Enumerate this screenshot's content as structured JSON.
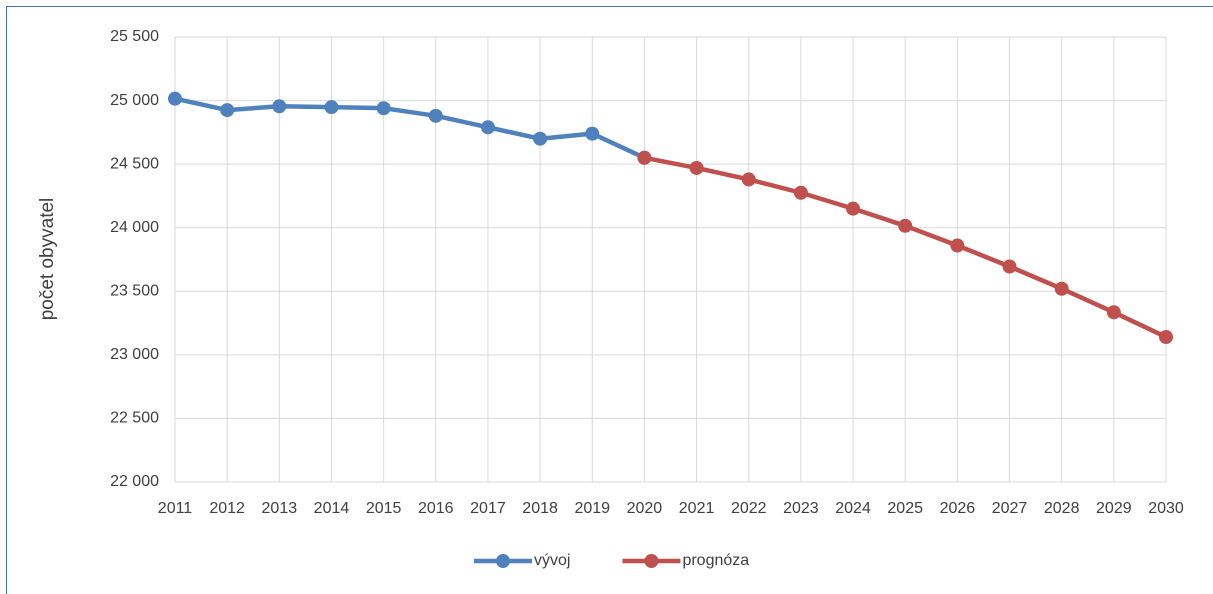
{
  "chart_data": {
    "type": "line",
    "y_label": "počet obyvatel",
    "categories": [
      "2011",
      "2012",
      "2013",
      "2014",
      "2015",
      "2016",
      "2017",
      "2018",
      "2019",
      "2020",
      "2021",
      "2022",
      "2023",
      "2024",
      "2025",
      "2026",
      "2027",
      "2028",
      "2029",
      "2030"
    ],
    "series": [
      {
        "name": "vývoj",
        "color": "#4f81bd",
        "values": [
          25015,
          24925,
          24955,
          24948,
          24940,
          24880,
          24790,
          24700,
          24740,
          24550,
          null,
          null,
          null,
          null,
          null,
          null,
          null,
          null,
          null,
          null
        ]
      },
      {
        "name": "prognóza",
        "color": "#c0504d",
        "values": [
          null,
          null,
          null,
          null,
          null,
          null,
          null,
          null,
          null,
          24550,
          24470,
          24380,
          24275,
          24150,
          24015,
          23860,
          23695,
          23520,
          23335,
          23140
        ]
      }
    ],
    "ylim": [
      22000,
      25500
    ],
    "yticks": [
      {
        "value": 22000,
        "label": "22 000"
      },
      {
        "value": 22500,
        "label": "22 500"
      },
      {
        "value": 23000,
        "label": "23 000"
      },
      {
        "value": 23500,
        "label": "23 500"
      },
      {
        "value": 24000,
        "label": "24 000"
      },
      {
        "value": 24500,
        "label": "24 500"
      },
      {
        "value": 25000,
        "label": "25 000"
      },
      {
        "value": 25500,
        "label": "25 500"
      }
    ],
    "grid": true,
    "legend": "bottom"
  }
}
